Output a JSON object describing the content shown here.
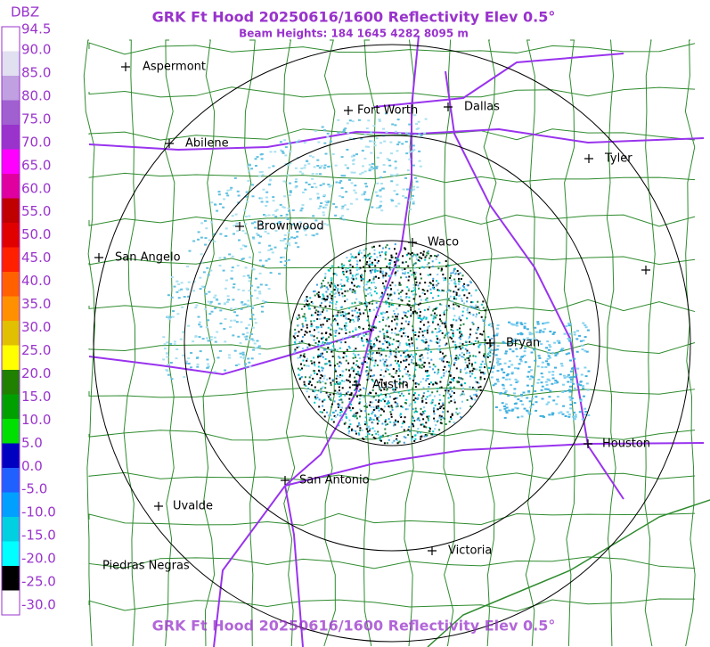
{
  "header": {
    "title": "GRK Ft Hood 20250616/1600 Reflectivity Elev 0.5°",
    "subtitle": "Beam Heights: 184 1645 4282 8095 m",
    "footer": "GRK Ft Hood 20250616/1600 Reflectivity Elev 0.5°"
  },
  "legend": {
    "unit": "DBZ",
    "labels": [
      "94.5",
      "90.0",
      "85.0",
      "80.0",
      "75.0",
      "70.0",
      "65.0",
      "60.0",
      "55.0",
      "50.0",
      "45.0",
      "40.0",
      "35.0",
      "30.0",
      "25.0",
      "20.0",
      "15.0",
      "10.0",
      "5.0",
      "0.0",
      "-5.0",
      "-10.0",
      "-15.0",
      "-20.0",
      "-25.0",
      "-30.0"
    ]
  },
  "cities": [
    {
      "name": "Aspermont"
    },
    {
      "name": "Fort Worth"
    },
    {
      "name": "Dallas"
    },
    {
      "name": "Abilene"
    },
    {
      "name": "Tyler"
    },
    {
      "name": "Brownwood"
    },
    {
      "name": "Waco"
    },
    {
      "name": "San Angelo"
    },
    {
      "name": "Bryan"
    },
    {
      "name": "Austin"
    },
    {
      "name": "Houston"
    },
    {
      "name": "San Antonio"
    },
    {
      "name": "Uvalde"
    },
    {
      "name": "Victoria"
    },
    {
      "name": "Piedras Negras"
    }
  ]
}
